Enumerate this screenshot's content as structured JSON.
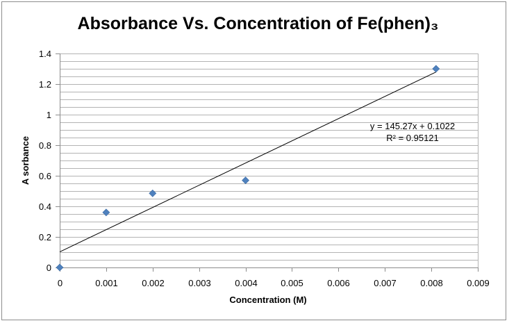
{
  "chart_data": {
    "type": "scatter",
    "title": "Absorbance Vs. Concentration of Fe(phen)₃",
    "xlabel": "Concentration (M)",
    "ylabel": "A sorbance",
    "xlim": [
      0,
      0.009
    ],
    "ylim": [
      0,
      1.4
    ],
    "x_ticks": [
      "0",
      "0.001",
      "0.002",
      "0.003",
      "0.004",
      "0.005",
      "0.006",
      "0.007",
      "0.008",
      "0.009"
    ],
    "y_ticks": [
      "0",
      "0.2",
      "0.4",
      "0.6",
      "0.8",
      "1",
      "1.2",
      "1.4"
    ],
    "x_tick_values": [
      0,
      0.001,
      0.002,
      0.003,
      0.004,
      0.005,
      0.006,
      0.007,
      0.008,
      0.009
    ],
    "y_tick_values": [
      0,
      0.2,
      0.4,
      0.6,
      0.8,
      1.0,
      1.2,
      1.4
    ],
    "grid": "horizontal",
    "minor_grid_step": 0.05,
    "legend": "none",
    "points": [
      {
        "x": 0,
        "y": 0
      },
      {
        "x": 0.001,
        "y": 0.36
      },
      {
        "x": 0.002,
        "y": 0.485
      },
      {
        "x": 0.004,
        "y": 0.57
      },
      {
        "x": 0.0081,
        "y": 1.3
      }
    ],
    "trendline": {
      "slope": 145.27,
      "intercept": 0.1022,
      "x_range": [
        0,
        0.0081
      ],
      "equation": "y = 145.27x + 0.1022",
      "r_squared": "R² = 0.95121"
    },
    "colors": {
      "marker": "#4f81bd",
      "trendline": "#000000",
      "grid": "#b3b3b3",
      "axis": "#8c8c8c"
    }
  }
}
